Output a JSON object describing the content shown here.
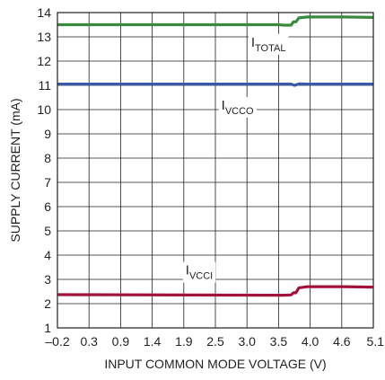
{
  "chart_data": {
    "type": "line",
    "xlabel": "INPUT COMMON MODE VOLTAGE (V)",
    "ylabel": "SUPPLY CURRENT (mA)",
    "xlim": [
      -0.2,
      5.1
    ],
    "ylim": [
      1,
      14
    ],
    "x_tick_labels": [
      "–0.2",
      "0.3",
      "0.9",
      "1.4",
      "1.9",
      "2.5",
      "3.0",
      "3.5",
      "4.0",
      "4.6",
      "5.1"
    ],
    "y_ticks": [
      1,
      2,
      3,
      4,
      5,
      6,
      7,
      8,
      9,
      10,
      11,
      12,
      13,
      14
    ],
    "grid": true,
    "series": [
      {
        "name": "I",
        "subscript": "TOTAL",
        "color": "#3a8a3e",
        "x": [
          -0.2,
          3.5,
          3.6,
          3.72,
          3.76,
          3.8,
          3.85,
          4.0,
          4.6,
          5.1
        ],
        "y": [
          13.5,
          13.5,
          13.48,
          13.48,
          13.62,
          13.62,
          13.78,
          13.82,
          13.82,
          13.8
        ]
      },
      {
        "name": "I",
        "subscript": "VCCO",
        "color": "#3a5aa8",
        "x": [
          -0.2,
          3.5,
          3.6,
          3.72,
          3.78,
          3.85,
          4.0,
          4.6,
          5.1
        ],
        "y": [
          11.05,
          11.05,
          11.05,
          11.05,
          11.0,
          11.06,
          11.05,
          11.05,
          11.05
        ]
      },
      {
        "name": "I",
        "subscript": "VCCI",
        "color": "#a0143c",
        "x": [
          -0.2,
          3.5,
          3.6,
          3.72,
          3.76,
          3.8,
          3.85,
          4.0,
          4.6,
          5.1
        ],
        "y": [
          2.37,
          2.35,
          2.35,
          2.36,
          2.45,
          2.45,
          2.65,
          2.7,
          2.7,
          2.68
        ]
      }
    ],
    "annotations": [
      {
        "series": 0,
        "at": [
          3.05,
          12.6
        ]
      },
      {
        "series": 1,
        "at": [
          2.55,
          10.0
        ]
      },
      {
        "series": 2,
        "at": [
          1.95,
          3.2
        ]
      }
    ]
  }
}
